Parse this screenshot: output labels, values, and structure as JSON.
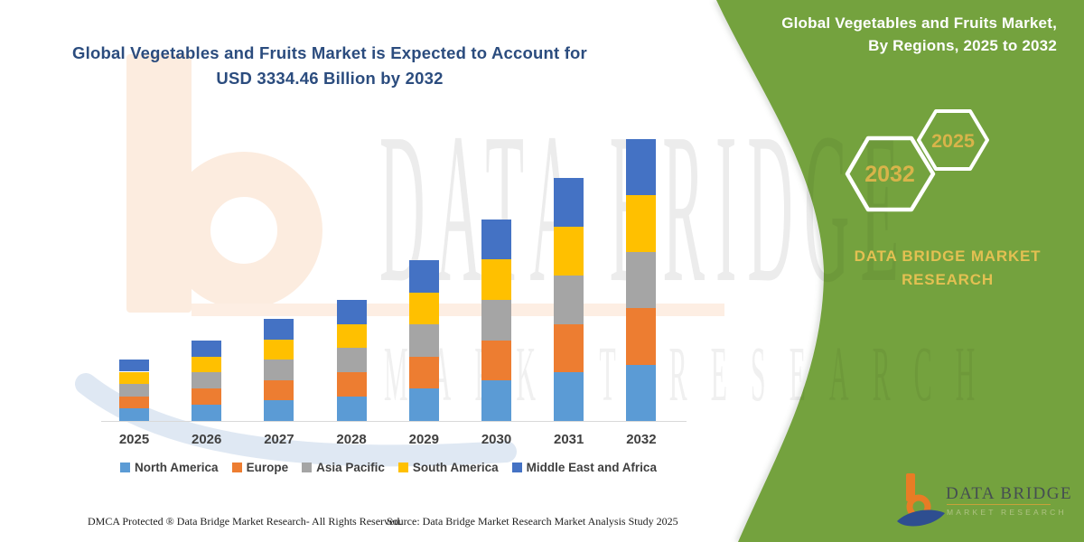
{
  "heading": {
    "line1": "Global Vegetables and Fruits Market is Expected to Account for",
    "line2": "USD 3334.46 Billion by 2032"
  },
  "panel": {
    "heading_line1": "Global Vegetables and Fruits Market,",
    "heading_line2": "By Regions, 2025 to 2032",
    "hex_back_year": "2032",
    "hex_front_year": "2025",
    "brand_line1": "DATA BRIDGE MARKET",
    "brand_line2": "RESEARCH",
    "green": "#74a23e",
    "gold": "#d8b44a"
  },
  "watermark": {
    "row1": "DATA BRIDGE",
    "row2": "MARKET RESEARCH"
  },
  "footer": {
    "left": "DMCA Protected ® Data Bridge Market Research- All Rights Reserved.",
    "source": "Source: Data Bridge Market Research Market Analysis Study 2025"
  },
  "logo": {
    "name": "DATA BRIDGE",
    "sub": "MARKET RESEARCH"
  },
  "chart_data": {
    "type": "bar",
    "stacked": true,
    "title": "Global Vegetables and Fruits Market is Expected to Account for USD 3334.46 Billion by 2032",
    "unit": "USD Billion",
    "xlabel": "",
    "ylabel": "",
    "y_axis_visible": false,
    "grid": false,
    "legend_position": "bottom",
    "categories": [
      "2025",
      "2026",
      "2027",
      "2028",
      "2029",
      "2030",
      "2031",
      "2032"
    ],
    "series": [
      {
        "name": "North America",
        "color": "#5b9bd5",
        "values": [
          145.4,
          190.4,
          240.2,
          286.8,
          379.4,
          477.0,
          573.2,
          666.9
        ]
      },
      {
        "name": "Europe",
        "color": "#ed7d31",
        "values": [
          145.4,
          190.4,
          240.2,
          286.8,
          379.4,
          477.0,
          573.2,
          666.9
        ]
      },
      {
        "name": "Asia Pacific",
        "color": "#a5a5a5",
        "values": [
          145.4,
          190.4,
          240.2,
          286.8,
          379.4,
          477.0,
          573.2,
          666.9
        ]
      },
      {
        "name": "South America",
        "color": "#ffc000",
        "values": [
          145.4,
          190.4,
          240.2,
          286.8,
          379.4,
          477.0,
          573.2,
          666.9
        ]
      },
      {
        "name": "Middle East and Africa",
        "color": "#4472c4",
        "values": [
          145.4,
          190.4,
          240.2,
          286.8,
          379.4,
          477.0,
          573.2,
          666.9
        ]
      }
    ],
    "totals": [
      727,
      952,
      1201,
      1434,
      1897,
      2385,
      2866,
      3334.46
    ],
    "ylim": [
      0,
      3400
    ]
  }
}
